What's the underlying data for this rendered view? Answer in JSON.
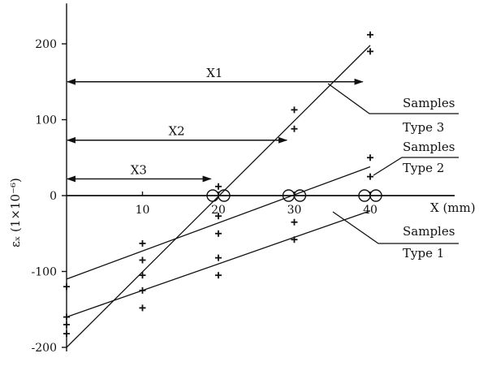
{
  "chart_data": {
    "type": "scatter",
    "xlabel": "X (mm)",
    "ylabel": "εₓ (1×10⁻⁶)",
    "xlim": [
      0,
      48
    ],
    "ylim": [
      -200,
      250
    ],
    "x_ticks": [
      {
        "value": 10,
        "label": "10"
      },
      {
        "value": 20,
        "label": "20"
      },
      {
        "value": 30,
        "label": "30"
      },
      {
        "value": 40,
        "label": "40"
      }
    ],
    "y_ticks": [
      {
        "value": 200,
        "label": "200"
      },
      {
        "value": 100,
        "label": "100"
      },
      {
        "value": 0,
        "label": "0"
      },
      {
        "value": -100,
        "label": "-100"
      },
      {
        "value": -200,
        "label": "-200"
      }
    ],
    "series": [
      {
        "name": "Samples Type 1",
        "label_lines": [
          "Samples",
          "Type 1"
        ],
        "fit": [
          [
            0,
            -160
          ],
          [
            40,
            -20
          ]
        ],
        "points": [
          [
            0,
            -170
          ],
          [
            10,
            -125
          ],
          [
            10,
            -148
          ],
          [
            20,
            -82
          ],
          [
            20,
            -105
          ],
          [
            30,
            -35
          ],
          [
            30,
            -58
          ]
        ]
      },
      {
        "name": "Samples Type 2",
        "label_lines": [
          "Samples",
          "Type 2"
        ],
        "fit": [
          [
            0,
            -110
          ],
          [
            40,
            38
          ]
        ],
        "points": [
          [
            0,
            -120
          ],
          [
            10,
            -63
          ],
          [
            10,
            -85
          ],
          [
            20,
            -27
          ],
          [
            20,
            -50
          ],
          [
            40,
            50
          ],
          [
            40,
            25
          ]
        ]
      },
      {
        "name": "Samples Type 3",
        "label_lines": [
          "Samples",
          "Type 3"
        ],
        "fit": [
          [
            0,
            -200
          ],
          [
            40,
            198
          ]
        ],
        "points": [
          [
            0,
            -160
          ],
          [
            0,
            -182
          ],
          [
            10,
            -105
          ],
          [
            20,
            12
          ],
          [
            30,
            113
          ],
          [
            30,
            88
          ],
          [
            40,
            212
          ],
          [
            40,
            190
          ]
        ]
      }
    ],
    "zero_crossings": [
      20,
      30,
      40
    ],
    "dimensions": [
      {
        "label": "X1",
        "from": 0,
        "to": 39,
        "y": 150
      },
      {
        "label": "X2",
        "from": 0,
        "to": 29,
        "y": 73
      },
      {
        "label": "X3",
        "from": 0,
        "to": 19,
        "y": 22
      }
    ]
  }
}
